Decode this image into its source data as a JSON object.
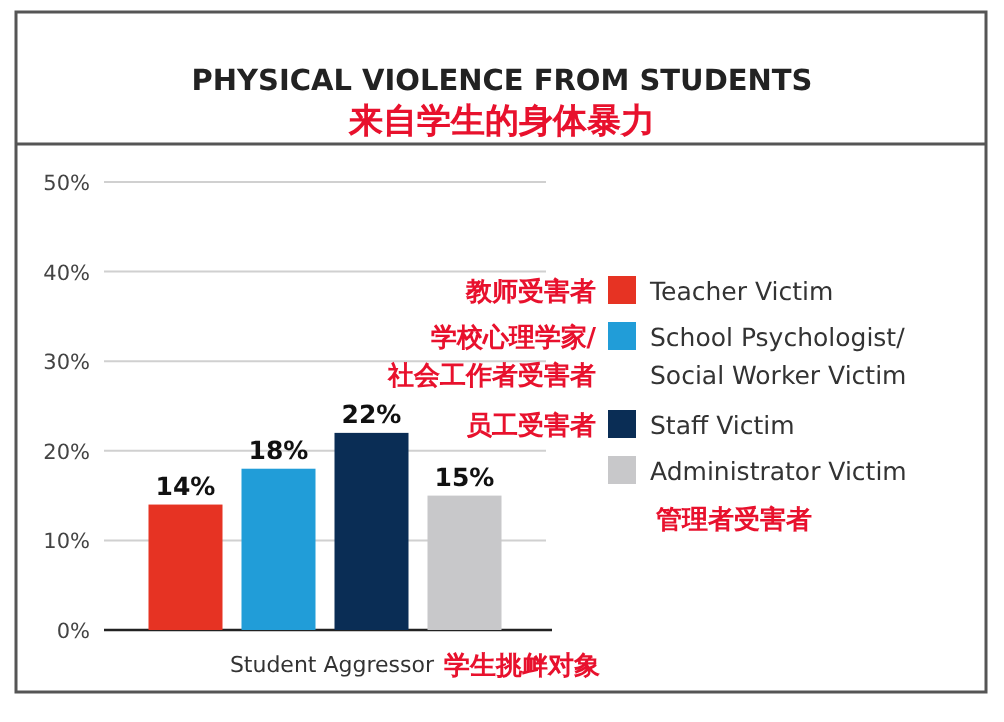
{
  "chart_data": {
    "type": "bar",
    "title": "PHYSICAL VIOLENCE FROM STUDENTS",
    "subtitle": "来自学生的身体暴力",
    "categories": [
      "Student Aggressor"
    ],
    "series": [
      {
        "name": "Teacher Victim",
        "color": "#e63323",
        "values": [
          14
        ],
        "value_labels": [
          "14%"
        ]
      },
      {
        "name": "School Psychologist/ Social Worker Victim",
        "color": "#219dd8",
        "values": [
          18
        ],
        "value_labels": [
          "18%"
        ]
      },
      {
        "name": "Staff Victim",
        "color": "#0a2d55",
        "values": [
          22
        ],
        "value_labels": [
          "22%"
        ]
      },
      {
        "name": "Administrator Victim",
        "color": "#c8c8ca",
        "values": [
          15
        ],
        "value_labels": [
          "15%"
        ]
      }
    ],
    "ylim": [
      0,
      50
    ],
    "yticks": [
      {
        "value": 0,
        "label": "0%"
      },
      {
        "value": 10,
        "label": "10%"
      },
      {
        "value": 20,
        "label": "20%"
      },
      {
        "value": 30,
        "label": "30%"
      },
      {
        "value": 40,
        "label": "40%"
      },
      {
        "value": 50,
        "label": "50%"
      }
    ],
    "grid": "y",
    "legend": "right",
    "annotations": [
      "教师受害者",
      "学校心理学家/社会工作者受害者",
      "员工受害者",
      "管理者受害者",
      "学生挑衅对象"
    ]
  }
}
